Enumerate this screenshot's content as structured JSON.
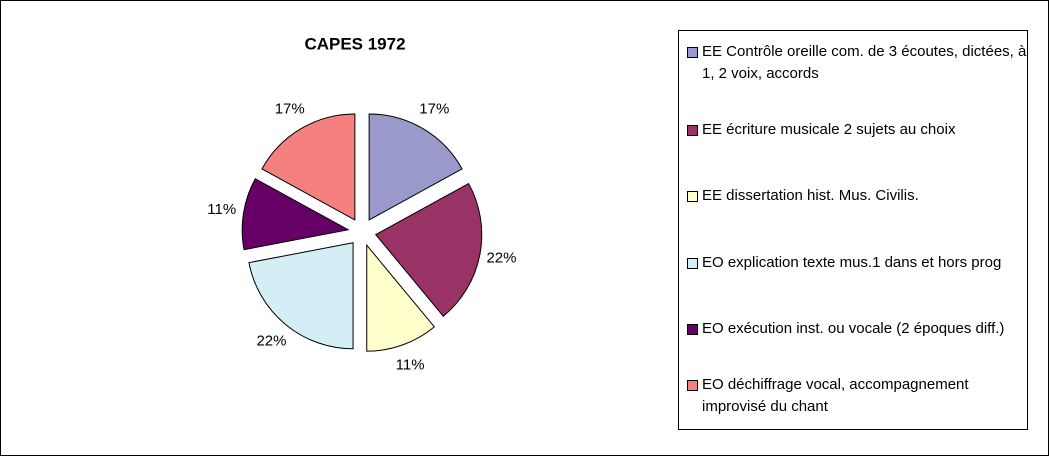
{
  "chart_data": {
    "type": "pie",
    "title": "CAPES 1972",
    "categories": [
      "EE Contrôle oreille com. de 3 écoutes, dictées, à 1, 2 voix, accords",
      "EE écriture musicale 2 sujets au choix",
      "EE dissertation hist. Mus. Civilis.",
      "EO explication texte mus.1 dans et hors prog",
      "EO exécution inst. ou vocale (2 époques diff.)",
      "EO déchiffrage vocal, accompagnement improvisé du chant"
    ],
    "values": [
      17,
      22,
      11,
      22,
      11,
      17
    ],
    "value_labels": [
      "17%",
      "22%",
      "11%",
      "22%",
      "11%",
      "17%"
    ],
    "colors": [
      "#9999cc",
      "#993366",
      "#ffffcc",
      "#d4eef6",
      "#660066",
      "#f48080"
    ],
    "legend": "right"
  }
}
